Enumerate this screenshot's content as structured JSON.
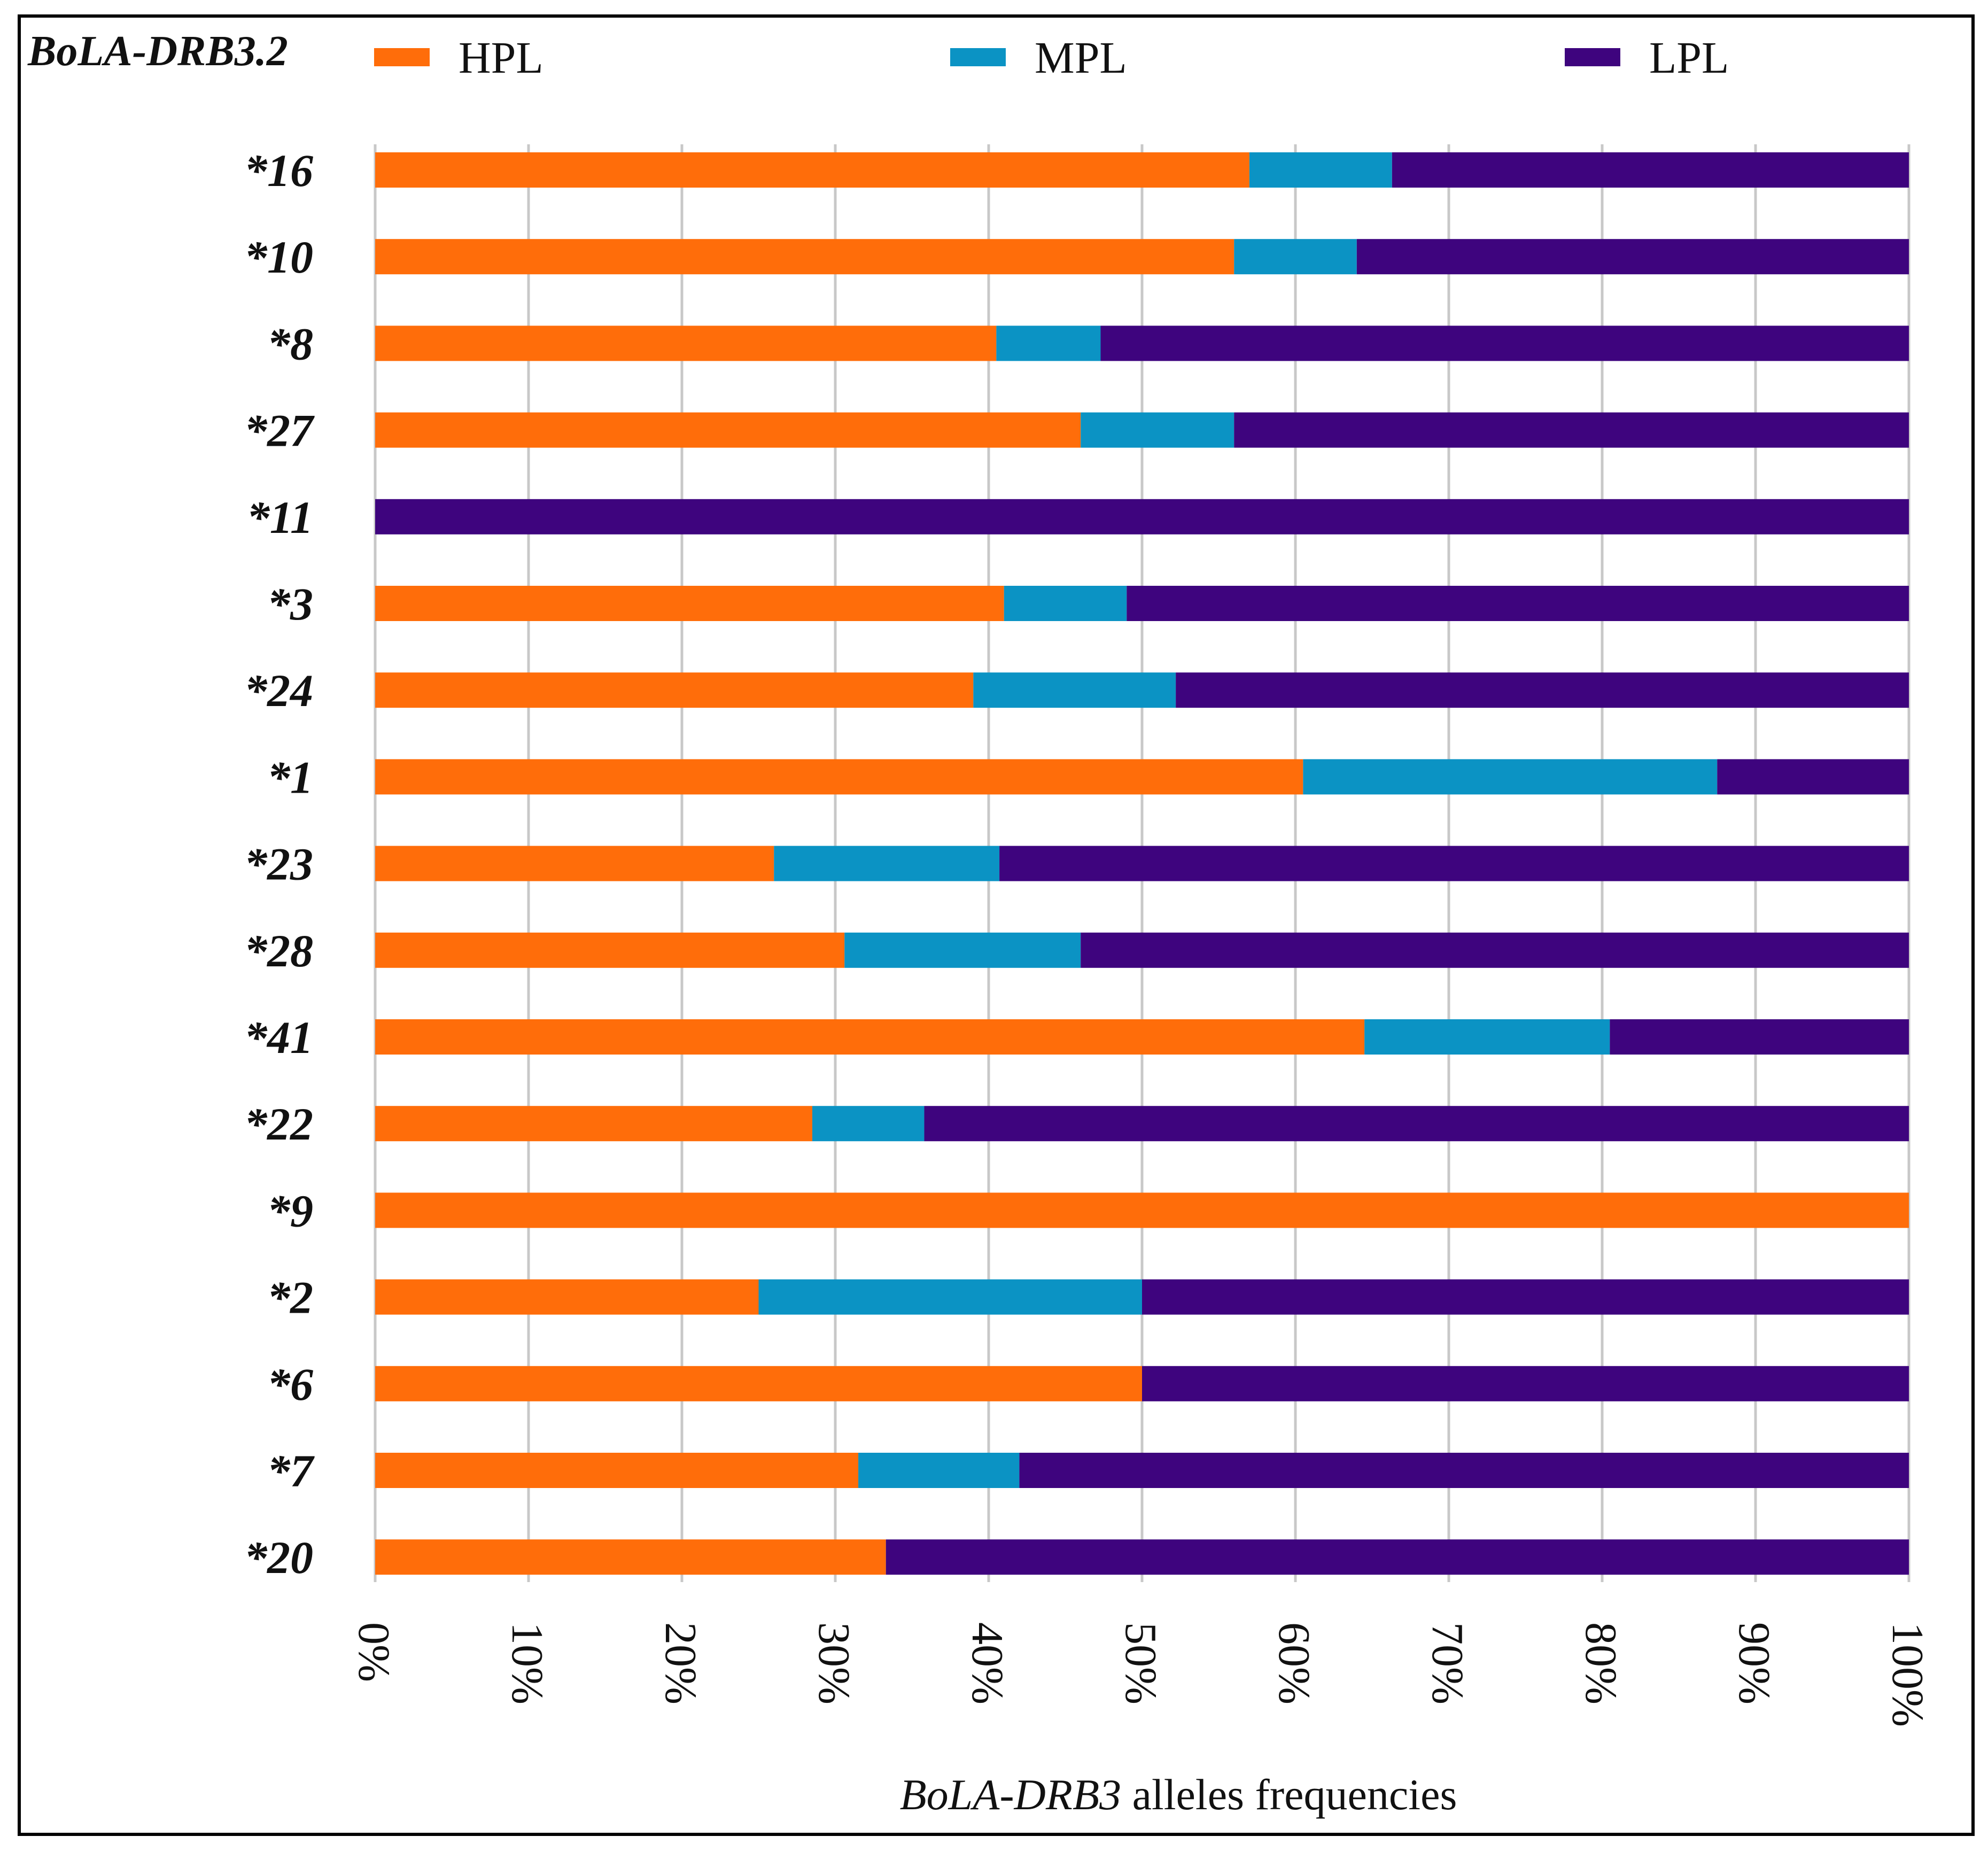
{
  "chart_data": {
    "type": "bar",
    "orientation": "horizontal",
    "stacked": true,
    "normalized": true,
    "title": "BoLA-DRB3.2",
    "xlabel_italic": "BoLA-DRB3",
    "xlabel_rest": " alleles frequencies",
    "ylabel": "",
    "xlim": [
      0,
      100
    ],
    "xticks": [
      "0%",
      "10%",
      "20%",
      "30%",
      "40%",
      "50%",
      "60%",
      "70%",
      "80%",
      "90%",
      "100%"
    ],
    "grid": true,
    "legend_position": "top",
    "categories": [
      "*16",
      "*10",
      "*8",
      "*27",
      "*11",
      "*3",
      "*24",
      "*1",
      "*23",
      "*28",
      "*41",
      "*22",
      "*9",
      "*2",
      "*6",
      "*7",
      "*20"
    ],
    "series": [
      {
        "name": "HPL",
        "color": "#ff6d0a",
        "values": [
          57,
          56,
          40.5,
          46,
          0,
          41,
          39,
          60.5,
          26,
          30.6,
          64.5,
          28.5,
          100,
          25,
          50,
          31.5,
          33.3
        ]
      },
      {
        "name": "MPL",
        "color": "#0b93c4",
        "values": [
          9.3,
          8,
          6.8,
          10,
          0,
          8,
          13.2,
          27,
          14.7,
          15.4,
          16,
          7.3,
          0,
          25,
          0,
          10.5,
          0
        ]
      },
      {
        "name": "LPL",
        "color": "#3e047e",
        "values": [
          33.7,
          36,
          52.7,
          44,
          100,
          51,
          47.8,
          12.5,
          59.3,
          54,
          19.5,
          64.2,
          0,
          50,
          50,
          58,
          66.7
        ]
      }
    ]
  }
}
